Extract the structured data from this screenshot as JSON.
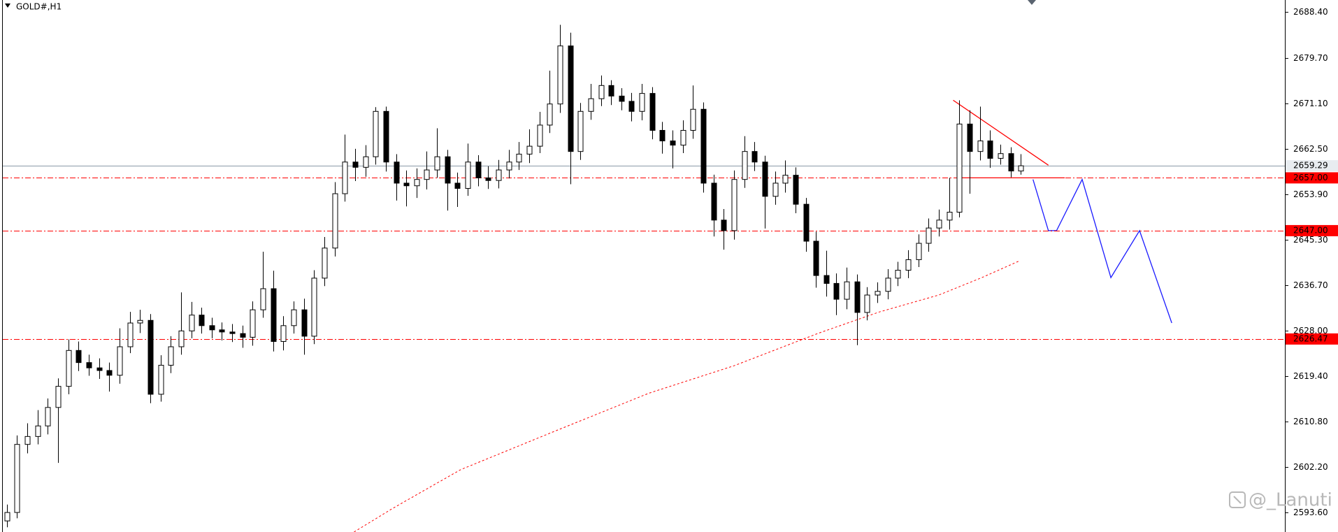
{
  "chart_data": {
    "type": "candlestick",
    "title": "GOLD#,H1",
    "watermark": "@_Lanuti",
    "ylim": [
      2589.9,
      2690.7
    ],
    "yticks": [
      {
        "value": 2688.4,
        "label": "2688.40"
      },
      {
        "value": 2679.7,
        "label": "2679.70"
      },
      {
        "value": 2671.1,
        "label": "2671.10"
      },
      {
        "value": 2662.5,
        "label": "2662.50"
      },
      {
        "value": 2653.9,
        "label": "2653.90"
      },
      {
        "value": 2645.3,
        "label": "2645.30"
      },
      {
        "value": 2636.7,
        "label": "2636.70"
      },
      {
        "value": 2628,
        "label": "2628.00"
      },
      {
        "value": 2619.4,
        "label": "2619.40"
      },
      {
        "value": 2610.8,
        "label": "2610.80"
      },
      {
        "value": 2602.2,
        "label": "2602.20"
      },
      {
        "value": 2593.6,
        "label": "2593.60"
      }
    ],
    "bull_color": "#ffffff",
    "bear_color": "#000000",
    "open": [
      2592,
      2593.6,
      2606.5,
      2608,
      2610,
      2613.5,
      2617.5,
      2624.3,
      2622,
      2621,
      2620.5,
      2619.6,
      2625,
      2629.5,
      2630,
      2616,
      2621.5,
      2625,
      2628,
      2631,
      2629,
      2628.2,
      2627.8,
      2627.5,
      2626.8,
      2632,
      2636,
      2626,
      2629,
      2632,
      2627,
      2638,
      2643.7,
      2654,
      2660,
      2659,
      2661,
      2669.6,
      2660,
      2656,
      2655.5,
      2656.7,
      2658.5,
      2661,
      2656,
      2655,
      2660,
      2657,
      2656.5,
      2658.5,
      2660,
      2661.5,
      2663,
      2667,
      2671,
      2682,
      2662,
      2669.6,
      2672,
      2674.5,
      2672.5,
      2671.5,
      2669.6,
      2673,
      2666,
      2664,
      2663.2,
      2666,
      2670,
      2656,
      2649,
      2647,
      2656.7,
      2662,
      2660,
      2653.5,
      2656,
      2657.5,
      2652,
      2645,
      2638.5,
      2637,
      2634,
      2637.3,
      2631.5,
      2634.8,
      2635.5,
      2638,
      2639.5,
      2641.5,
      2644.6,
      2647.5,
      2649,
      2650.5,
      2667.2,
      2662,
      2664,
      2660.7,
      2661.6,
      2658.3
    ],
    "high": [
      2595.1,
      2608.2,
      2610.5,
      2613,
      2615.2,
      2619,
      2626.4,
      2626,
      2623.5,
      2622.8,
      2622,
      2628.5,
      2631.6,
      2632,
      2631.2,
      2623.4,
      2627,
      2635.3,
      2633.5,
      2632.4,
      2630.5,
      2629.6,
      2629.3,
      2629,
      2633.6,
      2643,
      2639.4,
      2630.8,
      2633.6,
      2634.1,
      2639.5,
      2645.8,
      2656.2,
      2665.2,
      2662.5,
      2663.2,
      2670.4,
      2670.5,
      2661.5,
      2658.4,
      2658.8,
      2662,
      2666.4,
      2662.3,
      2658,
      2663.5,
      2661.3,
      2659.2,
      2660.4,
      2662.3,
      2663.8,
      2666.2,
      2669.5,
      2677.3,
      2686,
      2684.5,
      2671.2,
      2674.8,
      2676.4,
      2675.5,
      2674,
      2673.1,
      2674.8,
      2674.2,
      2667.6,
      2666,
      2667.9,
      2674.5,
      2671.3,
      2657.6,
      2651.1,
      2658.4,
      2664.9,
      2663.8,
      2661.2,
      2658.2,
      2660.3,
      2659,
      2653.2,
      2646.8,
      2643.2,
      2638.9,
      2640,
      2638.7,
      2636.3,
      2637.2,
      2639.7,
      2641.1,
      2643.3,
      2646.3,
      2649.3,
      2651,
      2657,
      2671.7,
      2669.8,
      2670.5,
      2666,
      2663.3,
      2662.8,
      2661.5
    ],
    "low": [
      2590.8,
      2592.5,
      2604.8,
      2606.5,
      2608.4,
      2603,
      2616,
      2620.4,
      2619.5,
      2618.9,
      2616.5,
      2618,
      2623.8,
      2627.6,
      2614.3,
      2614.6,
      2620,
      2623.5,
      2626.6,
      2627.5,
      2626.6,
      2626.2,
      2625.9,
      2624.8,
      2625.2,
      2630.5,
      2624.1,
      2624.3,
      2627.5,
      2623.5,
      2625.5,
      2636.5,
      2642.1,
      2652.5,
      2656.4,
      2657.2,
      2659.5,
      2658.2,
      2652.7,
      2651.6,
      2653.2,
      2654.8,
      2657,
      2650.8,
      2651.5,
      2653.6,
      2655.4,
      2654.9,
      2655,
      2656.9,
      2658.5,
      2659.8,
      2661.7,
      2665.5,
      2669.3,
      2655.8,
      2660.4,
      2668,
      2670.6,
      2670.8,
      2669.8,
      2667.7,
      2667.9,
      2664.3,
      2661.6,
      2658.8,
      2661.7,
      2664.4,
      2654.2,
      2645.9,
      2643.4,
      2645.3,
      2655.1,
      2658.3,
      2647.4,
      2651.9,
      2654.2,
      2650.3,
      2643,
      2636.2,
      2634.5,
      2631,
      2632.1,
      2625.3,
      2630,
      2633.3,
      2634,
      2636.5,
      2638,
      2640.1,
      2643,
      2645.9,
      2647.2,
      2649.5,
      2654,
      2660.3,
      2658.9,
      2659.5,
      2657.1,
      2657.6
    ],
    "close": [
      2593.6,
      2606.5,
      2608,
      2610,
      2613.5,
      2617.5,
      2624.3,
      2622,
      2621,
      2620.5,
      2619.6,
      2625,
      2629.5,
      2630,
      2616,
      2621.5,
      2625,
      2628,
      2631,
      2629,
      2628.2,
      2627.8,
      2627.5,
      2626.8,
      2632,
      2636,
      2626,
      2629,
      2632,
      2627,
      2638,
      2643.7,
      2654,
      2660,
      2659,
      2661,
      2669.6,
      2660,
      2656,
      2655.5,
      2656.7,
      2658.5,
      2661,
      2656,
      2655,
      2660,
      2657,
      2656.5,
      2658.5,
      2660,
      2661.5,
      2663,
      2667,
      2671,
      2682,
      2662,
      2669.6,
      2672,
      2674.5,
      2672.5,
      2671.5,
      2669.6,
      2673,
      2666,
      2664,
      2663.2,
      2666,
      2670,
      2656,
      2649,
      2647,
      2656.7,
      2662,
      2660,
      2653.5,
      2656,
      2657.5,
      2652,
      2645,
      2638.5,
      2637,
      2634,
      2637.3,
      2631.5,
      2634.8,
      2635.5,
      2638,
      2639.5,
      2641.5,
      2644.6,
      2647.5,
      2649,
      2650.5,
      2667.2,
      2662,
      2664,
      2660.7,
      2661.6,
      2658.3,
      2659.29
    ],
    "current_price": {
      "value": 2659.29,
      "label": "2659.29",
      "color": "#8a9aa8"
    },
    "levels": [
      {
        "value": 2657,
        "label": "2657.00",
        "color": "#ff0000"
      },
      {
        "value": 2647,
        "label": "2647.00",
        "color": "#ff0000"
      },
      {
        "value": 2626.47,
        "label": "2626.47",
        "color": "#ff0000"
      }
    ],
    "overlays": [
      {
        "color": "#ff0000",
        "dash": "dotted",
        "x": [
          33.9,
          37.7,
          44.3,
          53.5,
          62.7,
          71,
          79.3,
          85.2,
          91,
          95.2,
          98.9
        ],
        "y": [
          2589.9,
          2594.4,
          2601.7,
          2609,
          2616.2,
          2621.4,
          2627.6,
          2631.6,
          2634.8,
          2638.1,
          2641.3
        ]
      },
      {
        "color": "#ff0000",
        "dash": "solid",
        "x": [
          92.4,
          101.7
        ],
        "y": [
          2671.7,
          2659.4
        ]
      },
      {
        "color": "#ff0000",
        "dash": "solid",
        "x": [
          93.1,
          103.3
        ],
        "y": [
          2657,
          2657
        ]
      },
      {
        "color": "#1a1aff",
        "dash": "solid",
        "x": [
          100.2,
          101.7,
          102.5,
          105,
          107.8,
          110.6,
          113.75
        ],
        "y": [
          2656.7,
          2647,
          2647,
          2656.7,
          2638.1,
          2647,
          2629.5
        ]
      }
    ]
  }
}
